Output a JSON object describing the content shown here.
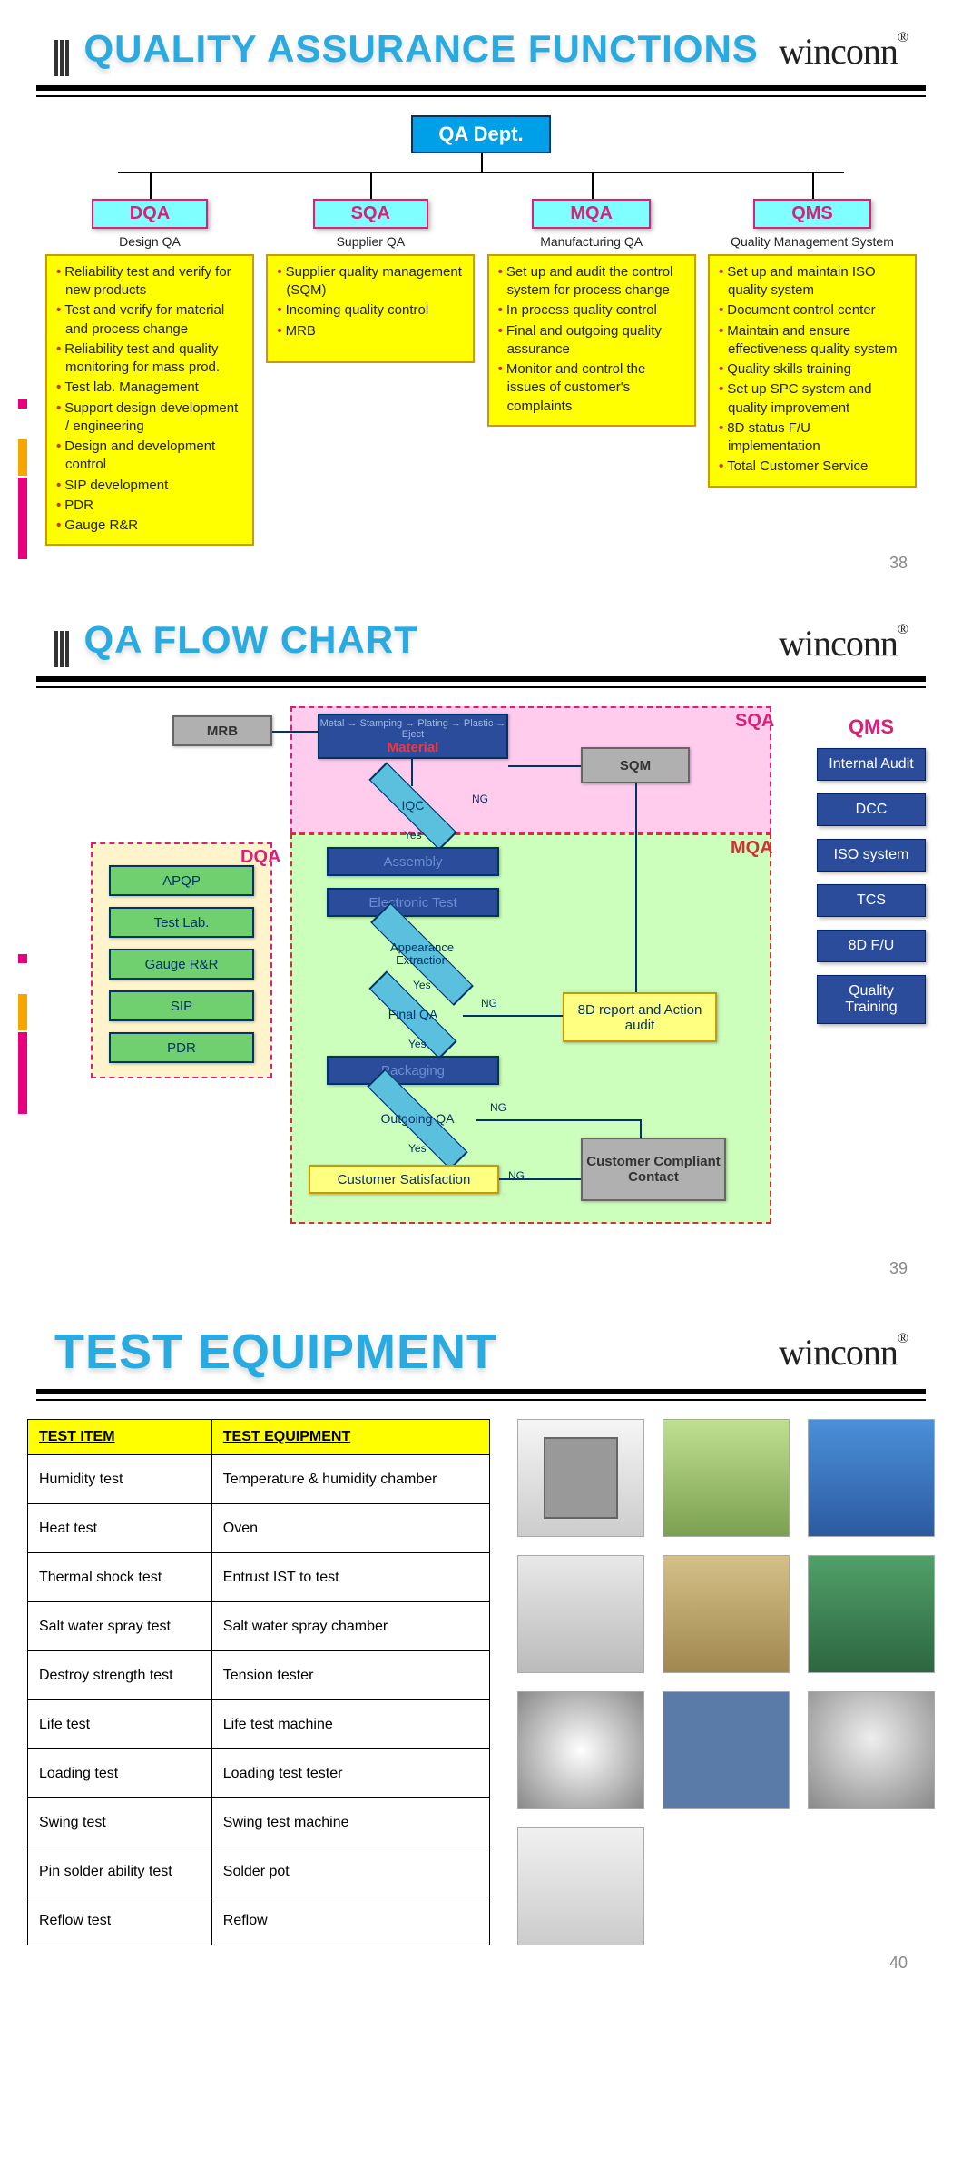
{
  "brand": "winconn",
  "slides": [
    {
      "title": "QUALITY ASSURANCE FUNCTIONS",
      "page": "38",
      "root": "QA Dept.",
      "columns": [
        {
          "code": "DQA",
          "name": "Design QA",
          "items": [
            "Reliability test and verify for new products",
            "Test and verify for material and process change",
            "Reliability test and quality monitoring for mass prod.",
            "Test lab. Management",
            "Support design development / engineering",
            "Design and development control",
            "SIP development",
            "PDR",
            "Gauge R&R"
          ]
        },
        {
          "code": "SQA",
          "name": "Supplier QA",
          "items": [
            "Supplier quality management (SQM)",
            "Incoming quality control",
            "MRB"
          ]
        },
        {
          "code": "MQA",
          "name": "Manufacturing QA",
          "items": [
            "Set up and audit the control system for process change",
            "In process quality control",
            "Final and outgoing quality assurance",
            "Monitor and control the issues of customer's complaints"
          ]
        },
        {
          "code": "QMS",
          "name": "Quality Management System",
          "items": [
            "Set up and maintain ISO quality system",
            "Document control center",
            "Maintain and ensure effectiveness quality system",
            "Quality skills training",
            "Set up SPC system and quality improvement",
            "8D status F/U implementation",
            "Total Customer Service"
          ]
        }
      ]
    },
    {
      "title": "QA FLOW CHART",
      "page": "39",
      "regions": {
        "dqa": {
          "label": "DQA",
          "color": "#d9217a",
          "bg": "#fff4cc",
          "items": [
            "APQP",
            "Test Lab.",
            "Gauge R&R",
            "SIP",
            "PDR"
          ]
        },
        "sqa": {
          "label": "SQA",
          "color": "#d9217a",
          "bg": "#ffccee"
        },
        "mqa": {
          "label": "MQA",
          "color": "#cc3333",
          "bg": "#ccffbb"
        }
      },
      "sqa_nodes": {
        "mrb": "MRB",
        "material_top": "Metal → Stamping → Plating → Plastic → Eject",
        "material": "Material",
        "sqm": "SQM",
        "iqc": "IQC"
      },
      "mqa_nodes": {
        "assembly": "Assembly",
        "etest": "Electronic Test",
        "appearance": "Appearance Extraction",
        "finalqa": "Final QA",
        "packaging": "Packaging",
        "outgoing": "Outgoing QA",
        "satisfaction": "Customer Satisfaction",
        "eightd": "8D report and Action audit",
        "compliant": "Customer Compliant Contact"
      },
      "labels": {
        "yes": "Yes",
        "ng": "NG"
      },
      "qms": {
        "title": "QMS",
        "items": [
          "Internal Audit",
          "DCC",
          "ISO system",
          "TCS",
          "8D F/U",
          "Quality Training"
        ]
      },
      "colors": {
        "process_box_bg": "#2b4b9b",
        "process_box_text": "#a0b8e0",
        "diamond_bg": "#5bc0de",
        "dqa_item_bg": "#70d070",
        "action_box_bg": "#ffff80",
        "grey_box_bg": "#b0b0b0"
      }
    },
    {
      "title": "TEST EQUIPMENT",
      "page": "40",
      "table": {
        "headers": [
          "TEST ITEM",
          "TEST EQUIPMENT"
        ],
        "rows": [
          [
            "Humidity test",
            "Temperature & humidity chamber"
          ],
          [
            "Heat test",
            "Oven"
          ],
          [
            "Thermal shock test",
            "Entrust IST to test"
          ],
          [
            "Salt water spray test",
            "Salt water spray chamber"
          ],
          [
            "Destroy strength test",
            "Tension tester"
          ],
          [
            "Life test",
            "Life test machine"
          ],
          [
            "Loading test",
            "Loading test tester"
          ],
          [
            "Swing test",
            "Swing test machine"
          ],
          [
            "Pin solder ability test",
            "Solder pot"
          ],
          [
            "Reflow test",
            "Reflow"
          ]
        ]
      },
      "equip_classes": [
        "eq-chamber",
        "eq-oven",
        "eq-blue",
        "eq-spray",
        "eq-tension",
        "eq-green",
        "eq-light",
        "eq-bluebg",
        "eq-round",
        "eq-reflow"
      ]
    }
  ]
}
